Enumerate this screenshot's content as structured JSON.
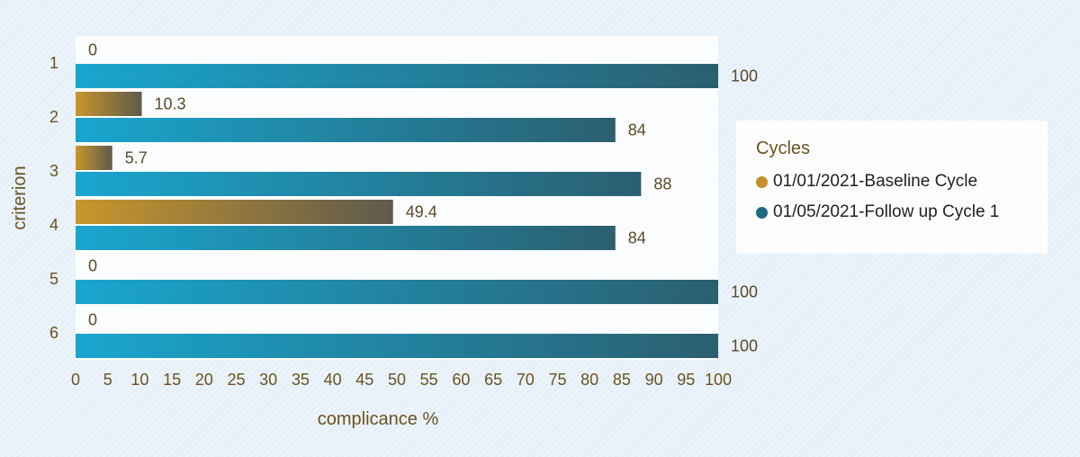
{
  "chart_data": {
    "type": "bar",
    "orientation": "horizontal",
    "categories": [
      "1",
      "2",
      "3",
      "4",
      "5",
      "6"
    ],
    "series": [
      {
        "name": "01/01/2021-Baseline Cycle",
        "color": "#c8962c",
        "color_end": "#5e5a4c",
        "values": [
          0,
          10.3,
          5.7,
          49.4,
          0,
          0
        ],
        "labels": [
          "0",
          "10.3",
          "5.7",
          "49.4",
          "0",
          "0"
        ]
      },
      {
        "name": "01/05/2021-Follow up Cycle 1",
        "color": "#19a6cf",
        "color_end": "#2b5f70",
        "values": [
          100,
          84,
          88,
          84,
          100,
          100
        ],
        "labels": [
          "100",
          "84",
          "88",
          "84",
          "100",
          "100"
        ]
      }
    ],
    "xlabel": "complicance %",
    "ylabel": "criterion",
    "xlim": [
      0,
      100
    ],
    "xticks": [
      "0",
      "5",
      "10",
      "15",
      "20",
      "25",
      "30",
      "35",
      "40",
      "45",
      "50",
      "55",
      "60",
      "65",
      "70",
      "75",
      "80",
      "85",
      "90",
      "95",
      "100"
    ],
    "legend_title": "Cycles",
    "legend_position": "right"
  }
}
